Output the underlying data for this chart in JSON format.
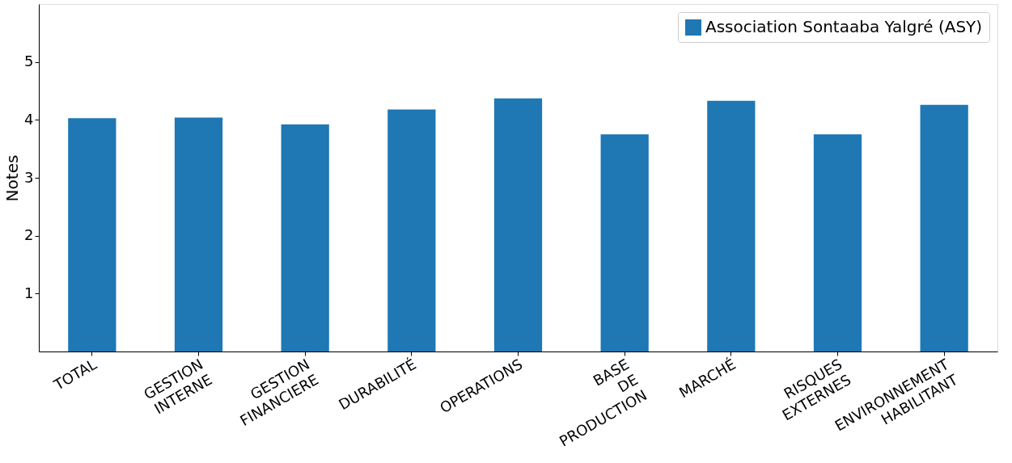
{
  "chart_data": {
    "type": "bar",
    "ylabel": "Notes",
    "categories": [
      "TOTAL",
      "GESTION\nINTERNE",
      "GESTION\nFINANCIERE",
      "DURABILITÉ",
      "OPERATIONS",
      "BASE\nDE\nPRODUCTION",
      "MARCHÉ",
      "RISQUES\nEXTERNES",
      "ENVIRONNEMENT\nHABILITANT"
    ],
    "series": [
      {
        "name": "Association Sontaaba Yalgré (ASY)",
        "color": "#1f77b4",
        "values": [
          4.03,
          4.04,
          3.92,
          4.18,
          4.37,
          3.75,
          4.33,
          3.75,
          4.26
        ]
      }
    ],
    "ylim": [
      0,
      6
    ],
    "yticks": [
      1,
      2,
      3,
      4,
      5
    ],
    "grid": false,
    "legend": "top right"
  }
}
